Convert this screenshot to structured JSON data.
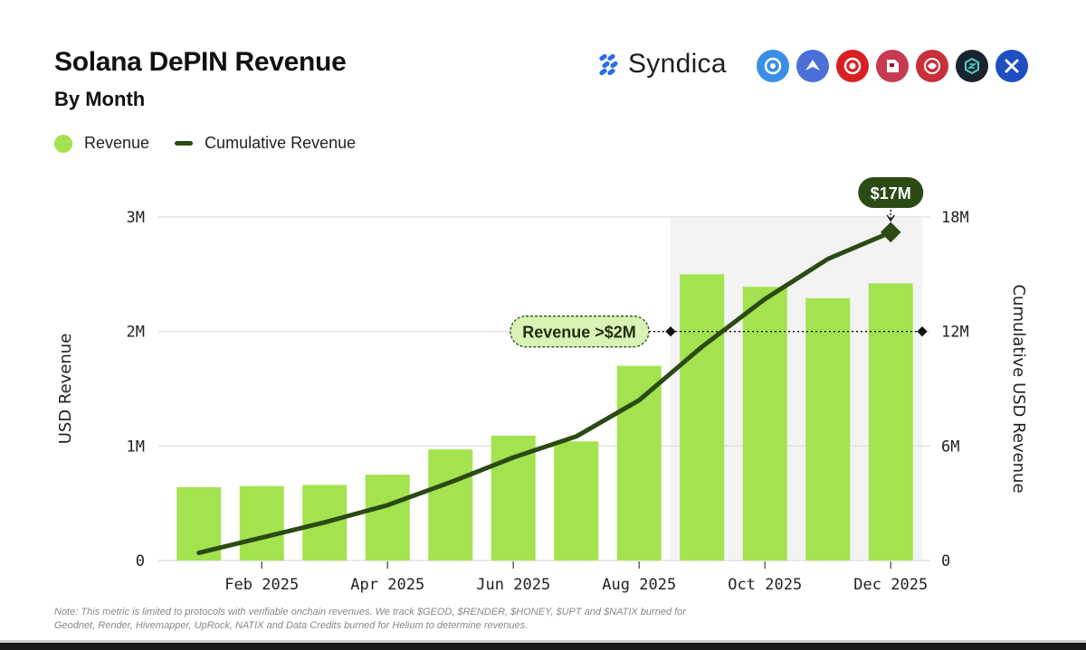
{
  "header": {
    "title": "Solana DePIN Revenue",
    "subtitle": "By Month",
    "brand": "Syndica"
  },
  "legend": {
    "revenue": "Revenue",
    "cumulative": "Cumulative Revenue"
  },
  "partners": [
    {
      "name": "helium",
      "color": "#3a8ee6"
    },
    {
      "name": "hivemapper",
      "color": "#4a6fd8"
    },
    {
      "name": "geodnet",
      "color": "#d92020"
    },
    {
      "name": "render",
      "color": "#c63a52"
    },
    {
      "name": "natix",
      "color": "#c8303a"
    },
    {
      "name": "uprock",
      "color": "#1a2430"
    },
    {
      "name": "x",
      "color": "#1f4fbf"
    }
  ],
  "colors": {
    "bar": "#a3e34f",
    "line": "#2b4a14",
    "highlight": "#f3f3f3",
    "label_bg": "#d8f3b4"
  },
  "chart_data": {
    "type": "bar",
    "categories": [
      "Jan 2025",
      "Feb 2025",
      "Mar 2025",
      "Apr 2025",
      "May 2025",
      "Jun 2025",
      "Jul 2025",
      "Aug 2025",
      "Sep 2025",
      "Oct 2025",
      "Nov 2025",
      "Dec 2025"
    ],
    "x_tick_labels": [
      "Feb 2025",
      "Apr 2025",
      "Jun 2025",
      "Aug 2025",
      "Oct 2025",
      "Dec 2025"
    ],
    "series": [
      {
        "name": "Revenue",
        "axis": "left",
        "type": "bar",
        "values": [
          640000,
          650000,
          660000,
          750000,
          970000,
          1090000,
          1040000,
          1700000,
          2500000,
          2390000,
          2290000,
          2420000
        ]
      },
      {
        "name": "Cumulative Revenue",
        "axis": "right",
        "type": "line",
        "values": [
          400000,
          1200000,
          2000000,
          2900000,
          4100000,
          5400000,
          6500000,
          8400000,
          11200000,
          13700000,
          15800000,
          17200000
        ]
      }
    ],
    "ylim_left": [
      0,
      3000000
    ],
    "ylim_right": [
      0,
      18000000
    ],
    "y_ticks_left": [
      "0",
      "1M",
      "2M",
      "3M"
    ],
    "y_ticks_right": [
      "0",
      "6M",
      "12M",
      "18M"
    ],
    "ylabel_left": "USD Revenue",
    "ylabel_right": "Cumulative USD Revenue",
    "highlight_from": "Sep 2025",
    "annotations": {
      "threshold": {
        "label": "Revenue >$2M",
        "value": 2000000
      },
      "end": {
        "label": "$17M"
      }
    }
  },
  "note": "Note: This metric is limited to protocols with verifiable onchain revenues. We track $GEOD, $RENDER, $HONEY, $UPT and $NATIX burned for Geodnet, Render, Hivemapper, UpRock, NATIX and Data Credits burned for Helium to determine revenues."
}
